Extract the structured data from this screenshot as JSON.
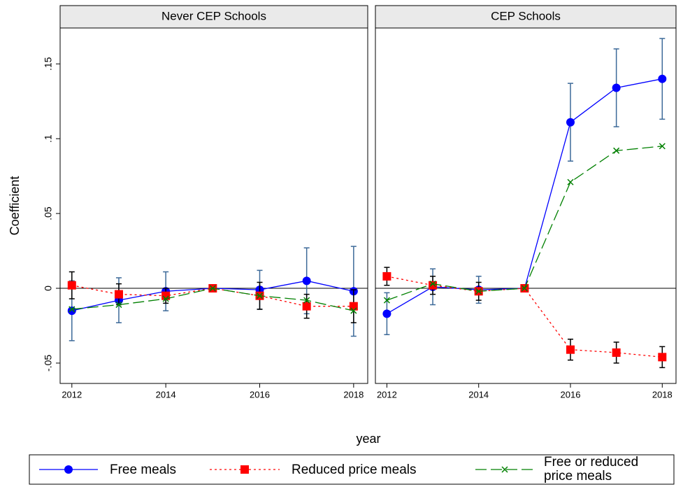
{
  "chart_data": {
    "type": "line",
    "ylabel": "Coefficient",
    "xlabel": "year",
    "x": [
      2012,
      2013,
      2014,
      2015,
      2016,
      2017,
      2018
    ],
    "xlim": [
      2011.75,
      2018.3
    ],
    "xticks": [
      2012,
      2014,
      2016,
      2018
    ],
    "ylim": [
      -0.0636,
      0.174
    ],
    "yticks": [
      {
        "value": -0.05,
        "label": "-.05"
      },
      0,
      {
        "value": 0.05,
        "label": ".05"
      },
      {
        "value": 0.1,
        "label": ".1"
      },
      {
        "value": 0.15,
        "label": ".15"
      }
    ],
    "series": [
      {
        "name": "Free meals",
        "color": "#0000ff",
        "marker": "circle",
        "error_color": "#3d6a99"
      },
      {
        "name": "Reduced price meals",
        "color": "#ff0000",
        "marker": "square",
        "error_color": "#000000"
      },
      {
        "name": "Free or reduced price meals",
        "color": "#008000",
        "marker": "x"
      }
    ],
    "panels": [
      {
        "title": "Never CEP Schools",
        "series": [
          {
            "values": [
              -0.015,
              -0.008,
              -0.002,
              0,
              -0.001,
              0.005,
              -0.002
            ],
            "errors": [
              0.02,
              0.015,
              0.013,
              0,
              0.013,
              0.022,
              0.03
            ]
          },
          {
            "values": [
              0.002,
              -0.004,
              -0.005,
              0,
              -0.005,
              -0.012,
              -0.012
            ],
            "errors": [
              0.009,
              0.007,
              0.005,
              0,
              0.009,
              0.008,
              0.011
            ]
          },
          {
            "values": [
              -0.014,
              -0.011,
              -0.007,
              0,
              -0.005,
              -0.008,
              -0.015
            ]
          }
        ]
      },
      {
        "title": "CEP Schools",
        "series": [
          {
            "values": [
              -0.017,
              0.001,
              -0.001,
              0,
              0.111,
              0.134,
              0.14
            ],
            "errors": [
              0.014,
              0.012,
              0.009,
              0,
              0.026,
              0.026,
              0.027
            ]
          },
          {
            "values": [
              0.008,
              0.002,
              -0.002,
              0,
              -0.041,
              -0.043,
              -0.046
            ],
            "errors": [
              0.006,
              0.006,
              0.006,
              0,
              0.007,
              0.007,
              0.007
            ]
          },
          {
            "values": [
              -0.008,
              0.003,
              -0.002,
              0,
              0.071,
              0.092,
              0.095
            ]
          }
        ]
      }
    ]
  }
}
